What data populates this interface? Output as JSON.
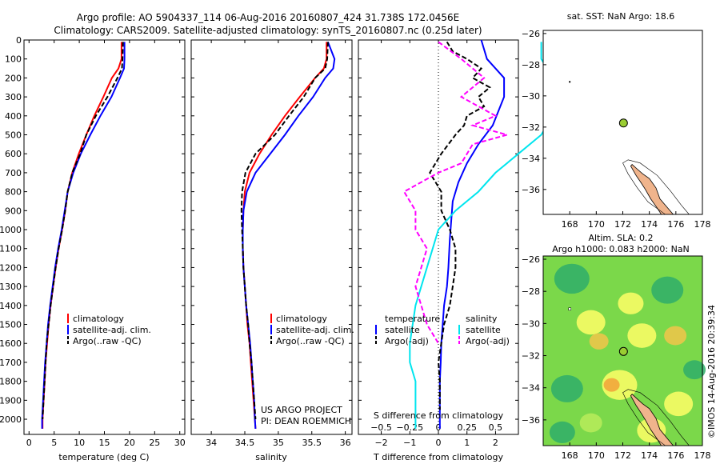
{
  "header": {
    "line1": "Argo profile: AO 5904337_114 06-Aug-2016 20160807_424 31.738S 172.0456E",
    "line2": "Climatology: CARS2009. Satellite-adjusted climatology: synTS_20160807.nc (0.25d later)"
  },
  "colors": {
    "climatology": "#ff0000",
    "satellite": "#0000ff",
    "argo": "#000000",
    "sat_diff": "#00e5ee",
    "argo_sdiff": "#ff00ff",
    "land": "#f0b48c",
    "marker": "#9acd32"
  },
  "chart_data": [
    {
      "type": "line",
      "id": "temperature",
      "xlabel": "temperature (deg C)",
      "ylim": [
        2080,
        0
      ],
      "xlim": [
        -1,
        31
      ],
      "yticks": [
        "0",
        "100",
        "200",
        "300",
        "400",
        "500",
        "600",
        "700",
        "800",
        "900",
        "1000",
        "1100",
        "1200",
        "1300",
        "1400",
        "1500",
        "1600",
        "1700",
        "1800",
        "1900",
        "2000"
      ],
      "xticks": [
        "0",
        "5",
        "10",
        "15",
        "20",
        "25",
        "30"
      ],
      "legend": [
        "climatology",
        "satellite-adj. clim.",
        "Argo(..raw -QC)"
      ],
      "series": [
        {
          "name": "climatology",
          "color": "#ff0000",
          "x": [
            18.4,
            18.4,
            17.8,
            16.5,
            14.8,
            13,
            11.4,
            9.9,
            8.6,
            7.7,
            7.2,
            6.6,
            5.9,
            5.3,
            4.8,
            4.3,
            3.9,
            3.6,
            3.3,
            3.1,
            2.9,
            2.7,
            2.7
          ],
          "y": [
            10,
            100,
            150,
            200,
            300,
            400,
            500,
            600,
            700,
            800,
            900,
            1000,
            1100,
            1200,
            1300,
            1400,
            1500,
            1600,
            1700,
            1800,
            1900,
            2000,
            2050
          ]
        },
        {
          "name": "satellite-adj. clim.",
          "color": "#0000ff",
          "x": [
            19.0,
            19.0,
            18.9,
            18.1,
            16.4,
            14.2,
            12.2,
            10.3,
            8.8,
            7.7,
            7.1,
            6.5,
            5.8,
            5.2,
            4.7,
            4.2,
            3.8,
            3.5,
            3.2,
            3.0,
            2.8,
            2.6,
            2.6
          ],
          "y": [
            10,
            100,
            150,
            200,
            300,
            400,
            500,
            600,
            700,
            800,
            900,
            1000,
            1100,
            1200,
            1300,
            1400,
            1500,
            1600,
            1700,
            1800,
            1900,
            2000,
            2050
          ]
        },
        {
          "name": "Argo(..raw -QC)",
          "color": "#000000",
          "dash": true,
          "x": [
            18.7,
            18.6,
            18.5,
            17.6,
            15.6,
            13.3,
            11.4,
            10.2,
            8.6,
            7.7,
            7.2,
            6.6,
            5.9,
            5.3,
            4.8,
            4.3,
            3.9,
            3.5,
            3.3,
            3.1,
            2.9,
            2.7
          ],
          "y": [
            10,
            100,
            150,
            200,
            300,
            400,
            500,
            600,
            700,
            800,
            900,
            1000,
            1100,
            1200,
            1300,
            1400,
            1500,
            1600,
            1700,
            1800,
            1900,
            2000
          ]
        }
      ]
    },
    {
      "type": "line",
      "id": "salinity",
      "xlabel": "salinity",
      "ylim": [
        2080,
        0
      ],
      "xlim": [
        33.7,
        36.1
      ],
      "xticks": [
        "34",
        "34.5",
        "35",
        "35.5",
        "36"
      ],
      "legend": [
        "climatology",
        "satellite-adj. clim.",
        "Argo(..raw -QC)"
      ],
      "series": [
        {
          "name": "climatology",
          "color": "#ff0000",
          "x": [
            35.72,
            35.72,
            35.68,
            35.55,
            35.32,
            35.1,
            34.9,
            34.72,
            34.57,
            34.5,
            34.48,
            34.47,
            34.47,
            34.48,
            34.5,
            34.52,
            34.54,
            34.57,
            34.59,
            34.61,
            34.63,
            34.65,
            34.66
          ],
          "y": [
            10,
            100,
            150,
            200,
            300,
            400,
            500,
            600,
            700,
            800,
            900,
            1000,
            1100,
            1200,
            1300,
            1400,
            1500,
            1600,
            1700,
            1800,
            1900,
            2000,
            2050
          ]
        },
        {
          "name": "satellite-adj. clim.",
          "color": "#0000ff",
          "x": [
            35.74,
            35.84,
            35.82,
            35.7,
            35.52,
            35.3,
            35.1,
            34.88,
            34.66,
            34.53,
            34.48,
            34.47,
            34.47,
            34.48,
            34.5,
            34.52,
            34.55,
            34.58,
            34.6,
            34.62,
            34.64,
            34.65,
            34.66
          ],
          "y": [
            10,
            100,
            150,
            200,
            300,
            400,
            500,
            600,
            700,
            800,
            900,
            1000,
            1100,
            1200,
            1300,
            1400,
            1500,
            1600,
            1700,
            1800,
            1900,
            2000,
            2050
          ]
        },
        {
          "name": "Argo(..raw -QC)",
          "color": "#000000",
          "dash": true,
          "x": [
            35.74,
            35.73,
            35.7,
            35.55,
            35.38,
            35.16,
            34.95,
            34.66,
            34.51,
            34.46,
            34.45,
            34.46,
            34.47,
            34.48,
            34.5,
            34.52,
            34.55,
            34.57,
            34.6,
            34.62,
            34.64,
            34.66
          ],
          "y": [
            10,
            100,
            150,
            200,
            300,
            400,
            500,
            600,
            700,
            800,
            900,
            1000,
            1100,
            1200,
            1300,
            1400,
            1500,
            1600,
            1700,
            1800,
            1900,
            2000
          ]
        }
      ]
    },
    {
      "type": "line",
      "id": "difference",
      "xlabel": "T difference from climatology",
      "xlabel2": "S difference from climatology",
      "ylim": [
        2080,
        0
      ],
      "xlim": [
        -2.8,
        2.8
      ],
      "xticks": [
        "-2",
        "-1",
        "0",
        "1",
        "2"
      ],
      "xticks2": [
        "-0.5",
        "-0.25",
        "0",
        "0.25",
        "0.5"
      ],
      "legend_left_title": "temperature",
      "legend_right_title": "salinity",
      "legend_left": [
        "satellite",
        "Argo(-adj)"
      ],
      "legend_right": [
        "satellite",
        "Argo(-adj)"
      ],
      "series": [
        {
          "name": "T satellite",
          "color": "#0000ff",
          "x": [
            1.5,
            1.7,
            2.0,
            2.3,
            2.3,
            1.9,
            1.4,
            1.0,
            0.7,
            0.5,
            0.45,
            0.4,
            0.35,
            0.3,
            0.2,
            0.15,
            0.1,
            0.08,
            0.05,
            0.05,
            0.05,
            0.05
          ],
          "y": [
            0,
            100,
            150,
            200,
            300,
            450,
            550,
            650,
            750,
            850,
            950,
            1050,
            1200,
            1300,
            1400,
            1500,
            1600,
            1700,
            1800,
            1900,
            2000,
            2050
          ]
        },
        {
          "name": "T Argo(-adj)",
          "color": "#000000",
          "dash": true,
          "x": [
            0.3,
            0.5,
            1.0,
            1.5,
            1.2,
            1.8,
            1.4,
            1.6,
            1.0,
            0.9,
            0.6,
            0.1,
            -0.3,
            0.1,
            0.1,
            0.4,
            0.6,
            0.6,
            0.5,
            0.4,
            0.2,
            0.1,
            0.0,
            0.05,
            0.05
          ],
          "y": [
            10,
            60,
            100,
            150,
            200,
            250,
            300,
            350,
            400,
            450,
            500,
            600,
            700,
            800,
            900,
            1000,
            1100,
            1200,
            1300,
            1400,
            1500,
            1600,
            1700,
            1800,
            1950
          ]
        },
        {
          "name": "S satellite",
          "color": "#00e5ee",
          "x": [
            0.9,
            0.9,
            1.0,
            1.1,
            1.0,
            0.9,
            0.7,
            0.5,
            0.35,
            0.15,
            0.0,
            -0.1,
            -0.2,
            -0.25,
            -0.25,
            -0.2,
            -0.2,
            -0.2
          ],
          "y": [
            10,
            100,
            200,
            300,
            400,
            500,
            600,
            700,
            800,
            900,
            1000,
            1200,
            1400,
            1600,
            1700,
            1800,
            1900,
            2050
          ]
        },
        {
          "name": "S Argo(-adj)",
          "color": "#ff00ff",
          "dash": true,
          "x": [
            0.0,
            0.2,
            0.4,
            0.2,
            0.5,
            0.3,
            0.6,
            0.3,
            0.2,
            0.0,
            -0.3,
            -0.2,
            -0.2,
            -0.1,
            -0.2,
            -0.1,
            0.0
          ],
          "y": [
            10,
            100,
            200,
            300,
            400,
            450,
            500,
            550,
            650,
            700,
            800,
            900,
            1000,
            1100,
            1300,
            1500,
            1600
          ]
        }
      ]
    },
    {
      "type": "scatter",
      "id": "sst-map",
      "title": "sat. SST: NaN Argo: 18.6",
      "xlim": [
        166,
        178
      ],
      "ylim": [
        -37.6,
        -25.8
      ],
      "xticks": [
        "168",
        "170",
        "172",
        "174",
        "176",
        "178"
      ],
      "yticks": [
        "-26",
        "-28",
        "-30",
        "-32",
        "-34",
        "-36"
      ],
      "argo_position": [
        172.05,
        -31.74
      ]
    },
    {
      "type": "heatmap",
      "id": "sla-map",
      "title": "Altim. SLA: 0.2",
      "subtitle": "Argo h1000: 0.083 h2000: NaN",
      "xlim": [
        166,
        178
      ],
      "ylim": [
        -37.6,
        -25.8
      ],
      "xticks": [
        "168",
        "170",
        "172",
        "174",
        "176",
        "178"
      ],
      "yticks": [
        "-26",
        "-28",
        "-30",
        "-32",
        "-34",
        "-36"
      ],
      "argo_position": [
        172.05,
        -31.74
      ]
    }
  ],
  "project": {
    "line1": "US ARGO PROJECT",
    "line2": "PI: DEAN ROEMMICH"
  },
  "stamp": "©IMOS 14-Aug-2016 20:39:34"
}
